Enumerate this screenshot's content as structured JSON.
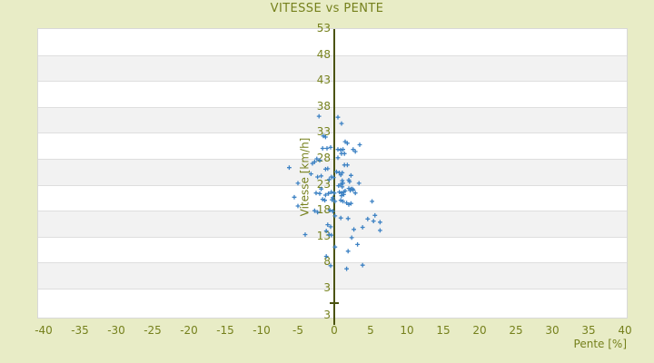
{
  "colors": {
    "background": "#e8ecc6",
    "band_light": "#ffffff",
    "band_dark": "#f2f2f2",
    "plot_border": "#d8d8d8",
    "grid_line": "#dedede",
    "axis_line": "#4b530f",
    "text": "#75801c",
    "marker": "#3d82c4"
  },
  "chart_data": {
    "type": "scatter",
    "title": "VITESSE vs PENTE",
    "xlabel": "Pente [%]",
    "ylabel": "Vitesse [km/h]",
    "marker_style": "plus",
    "legend": "none",
    "grid": "horizontal-bands",
    "x_ticks": [
      -40,
      -35,
      -30,
      -25,
      -20,
      -15,
      -10,
      -5,
      0,
      5,
      10,
      15,
      20,
      25,
      30,
      35,
      40
    ],
    "y_ticks": [
      53,
      48,
      43,
      38,
      33,
      28,
      23,
      18,
      13,
      8,
      3
    ],
    "y_axis_bottom_label": "3",
    "xlim": [
      -40.75,
      40.25
    ],
    "ylim": [
      -2.6,
      53
    ],
    "zero_line_x": 0,
    "points": [
      [
        -2.1,
        36.2
      ],
      [
        0.5,
        36.0
      ],
      [
        1.0,
        34.8
      ],
      [
        -1.5,
        32.4
      ],
      [
        -1.2,
        32.2
      ],
      [
        1.5,
        31.3
      ],
      [
        1.8,
        31.0
      ],
      [
        3.5,
        30.7
      ],
      [
        -1.6,
        30.0
      ],
      [
        -1.0,
        30.0
      ],
      [
        -0.5,
        30.2
      ],
      [
        0.5,
        29.8
      ],
      [
        0.9,
        29.7
      ],
      [
        1.2,
        29.8
      ],
      [
        2.6,
        29.8
      ],
      [
        2.9,
        29.4
      ],
      [
        1.0,
        29.0
      ],
      [
        1.4,
        29.0
      ],
      [
        0.5,
        28.2
      ],
      [
        -6.2,
        26.3
      ],
      [
        -3.0,
        27.1
      ],
      [
        -2.7,
        27.4
      ],
      [
        -2.4,
        28.0
      ],
      [
        -2.0,
        27.7
      ],
      [
        1.4,
        26.8
      ],
      [
        1.8,
        26.8
      ],
      [
        -1.2,
        26.0
      ],
      [
        -0.9,
        26.1
      ],
      [
        0.3,
        25.5
      ],
      [
        0.7,
        25.3
      ],
      [
        1.1,
        25.3
      ],
      [
        0.9,
        24.9
      ],
      [
        2.3,
        24.8
      ],
      [
        -3.2,
        25.1
      ],
      [
        -5.0,
        23.3
      ],
      [
        -2.3,
        24.5
      ],
      [
        -1.8,
        24.7
      ],
      [
        -0.4,
        24.5
      ],
      [
        -0.7,
        24.0
      ],
      [
        -0.1,
        24.4
      ],
      [
        1.1,
        23.8
      ],
      [
        2.0,
        23.9
      ],
      [
        2.1,
        23.6
      ],
      [
        3.4,
        23.3
      ],
      [
        0.6,
        22.8
      ],
      [
        0.9,
        23.1
      ],
      [
        1.2,
        23.3
      ],
      [
        -1.8,
        22.2
      ],
      [
        2.3,
        22.2
      ],
      [
        2.6,
        22.0
      ],
      [
        1.1,
        22.6
      ],
      [
        2.0,
        22.3
      ],
      [
        2.2,
        21.9
      ],
      [
        2.5,
        22.2
      ],
      [
        2.9,
        21.4
      ],
      [
        0.7,
        21.6
      ],
      [
        1.0,
        21.4
      ],
      [
        1.3,
        21.6
      ],
      [
        1.5,
        21.8
      ],
      [
        -0.4,
        21.6
      ],
      [
        0.0,
        21.4
      ],
      [
        -1.2,
        21.0
      ],
      [
        -0.8,
        21.3
      ],
      [
        -2.0,
        21.3
      ],
      [
        -2.5,
        21.4
      ],
      [
        -5.5,
        20.6
      ],
      [
        -1.6,
        20.2
      ],
      [
        -1.3,
        20.0
      ],
      [
        -0.3,
        20.1
      ],
      [
        0.1,
        19.8
      ],
      [
        0.9,
        20.0
      ],
      [
        1.2,
        19.8
      ],
      [
        1.0,
        20.9
      ],
      [
        1.3,
        21.1
      ],
      [
        -0.2,
        20.5
      ],
      [
        1.7,
        19.5
      ],
      [
        2.0,
        19.2
      ],
      [
        5.2,
        19.8
      ],
      [
        2.3,
        19.4
      ],
      [
        -5.0,
        18.9
      ],
      [
        -2.7,
        18.0
      ],
      [
        -2.3,
        17.7
      ],
      [
        -0.6,
        18.1
      ],
      [
        -0.2,
        17.9
      ],
      [
        0.1,
        17.0
      ],
      [
        5.6,
        17.1
      ],
      [
        0.9,
        16.6
      ],
      [
        1.9,
        16.5
      ],
      [
        4.6,
        16.4
      ],
      [
        5.4,
        16.0
      ],
      [
        6.3,
        15.8
      ],
      [
        -0.9,
        15.3
      ],
      [
        -0.5,
        14.9
      ],
      [
        3.9,
        14.8
      ],
      [
        2.7,
        14.4
      ],
      [
        6.3,
        14.2
      ],
      [
        -1.1,
        14.1
      ],
      [
        -4.0,
        13.4
      ],
      [
        -0.7,
        13.4
      ],
      [
        -0.4,
        13.3
      ],
      [
        2.4,
        12.8
      ],
      [
        3.2,
        11.5
      ],
      [
        0.1,
        11.0
      ],
      [
        1.9,
        10.2
      ],
      [
        -1.1,
        9.2
      ],
      [
        -0.5,
        7.4
      ],
      [
        1.7,
        6.8
      ],
      [
        3.9,
        7.5
      ]
    ]
  }
}
